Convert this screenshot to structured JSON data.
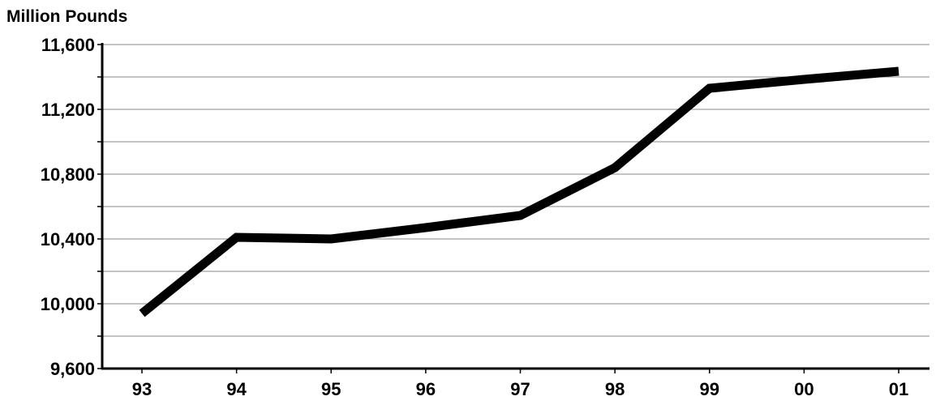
{
  "chart_data": {
    "type": "line",
    "ylabel": "Million Pounds",
    "xlabel": "",
    "categories": [
      "93",
      "94",
      "95",
      "96",
      "97",
      "98",
      "99",
      "00",
      "01"
    ],
    "series": [
      {
        "values": [
          9940,
          10410,
          10400,
          10470,
          10545,
          10840,
          11330,
          11385,
          11435
        ]
      }
    ],
    "ylim": [
      9600,
      11600
    ],
    "yticks": [
      9600,
      10000,
      10400,
      10800,
      11200,
      11600
    ],
    "ytick_labels": [
      "9,600",
      "10,000",
      "10,400",
      "10,800",
      "11,200",
      "11,600"
    ],
    "grid_step": 200,
    "grid": true,
    "line_color": "#000000",
    "grid_color": "#8a8a8a"
  }
}
